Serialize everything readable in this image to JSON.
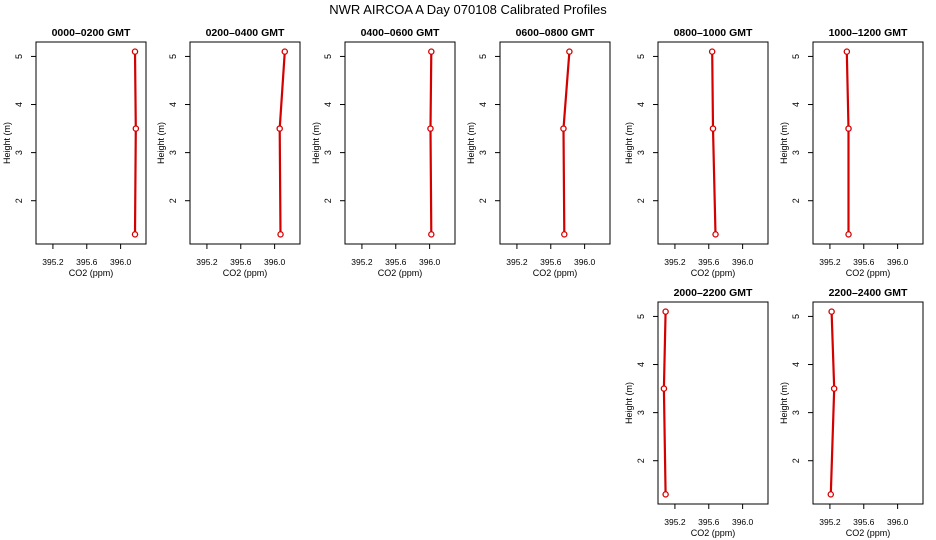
{
  "title": "NWR AIRCOA A  Day 070108  Calibrated Profiles",
  "style": {
    "line_color": "#d40000",
    "marker_color": "#d40000",
    "axis_color": "#000000"
  },
  "chart_data": [
    {
      "type": "line",
      "title": "0000–0200 GMT",
      "xlabel": "CO2 (ppm)",
      "ylabel": "Height (m)",
      "xlim": [
        395.0,
        396.3
      ],
      "ylim": [
        1.1,
        5.3
      ],
      "xticks": [
        "395.2",
        "395.6",
        "396.0"
      ],
      "yticks": [
        "2",
        "3",
        "4",
        "5"
      ],
      "points": [
        {
          "x": 396.17,
          "y": 1.3
        },
        {
          "x": 396.18,
          "y": 3.5
        },
        {
          "x": 396.17,
          "y": 5.1
        }
      ]
    },
    {
      "type": "line",
      "title": "0200–0400 GMT",
      "xlabel": "CO2 (ppm)",
      "ylabel": "Height (m)",
      "xlim": [
        395.0,
        396.3
      ],
      "ylim": [
        1.1,
        5.3
      ],
      "xticks": [
        "395.2",
        "395.6",
        "396.0"
      ],
      "yticks": [
        "2",
        "3",
        "4",
        "5"
      ],
      "points": [
        {
          "x": 396.07,
          "y": 1.3
        },
        {
          "x": 396.06,
          "y": 3.5
        },
        {
          "x": 396.12,
          "y": 5.1
        }
      ]
    },
    {
      "type": "line",
      "title": "0400–0600 GMT",
      "xlabel": "CO2 (ppm)",
      "ylabel": "Height (m)",
      "xlim": [
        395.0,
        396.3
      ],
      "ylim": [
        1.1,
        5.3
      ],
      "xticks": [
        "395.2",
        "395.6",
        "396.0"
      ],
      "yticks": [
        "2",
        "3",
        "4",
        "5"
      ],
      "points": [
        {
          "x": 396.02,
          "y": 1.3
        },
        {
          "x": 396.01,
          "y": 3.5
        },
        {
          "x": 396.02,
          "y": 5.1
        }
      ]
    },
    {
      "type": "line",
      "title": "0600–0800 GMT",
      "xlabel": "CO2 (ppm)",
      "ylabel": "Height (m)",
      "xlim": [
        395.0,
        396.3
      ],
      "ylim": [
        1.1,
        5.3
      ],
      "xticks": [
        "395.2",
        "395.6",
        "396.0"
      ],
      "yticks": [
        "2",
        "3",
        "4",
        "5"
      ],
      "points": [
        {
          "x": 395.76,
          "y": 1.3
        },
        {
          "x": 395.75,
          "y": 3.5
        },
        {
          "x": 395.82,
          "y": 5.1
        }
      ]
    },
    {
      "type": "line",
      "title": "0800–1000 GMT",
      "xlabel": "CO2 (ppm)",
      "ylabel": "Height (m)",
      "xlim": [
        395.0,
        396.3
      ],
      "ylim": [
        1.1,
        5.3
      ],
      "xticks": [
        "395.2",
        "395.6",
        "396.0"
      ],
      "yticks": [
        "2",
        "3",
        "4",
        "5"
      ],
      "points": [
        {
          "x": 395.68,
          "y": 1.3
        },
        {
          "x": 395.65,
          "y": 3.5
        },
        {
          "x": 395.64,
          "y": 5.1
        }
      ]
    },
    {
      "type": "line",
      "title": "1000–1200 GMT",
      "xlabel": "CO2 (ppm)",
      "ylabel": "Height (m)",
      "xlim": [
        395.0,
        396.3
      ],
      "ylim": [
        1.1,
        5.3
      ],
      "xticks": [
        "395.2",
        "395.6",
        "396.0"
      ],
      "yticks": [
        "2",
        "3",
        "4",
        "5"
      ],
      "points": [
        {
          "x": 395.42,
          "y": 1.3
        },
        {
          "x": 395.42,
          "y": 3.5
        },
        {
          "x": 395.4,
          "y": 5.1
        }
      ]
    },
    {
      "type": "line",
      "title": "2000–2200 GMT",
      "xlabel": "CO2 (ppm)",
      "ylabel": "Height (m)",
      "xlim": [
        395.0,
        396.3
      ],
      "ylim": [
        1.1,
        5.3
      ],
      "xticks": [
        "395.2",
        "395.6",
        "396.0"
      ],
      "yticks": [
        "2",
        "3",
        "4",
        "5"
      ],
      "points": [
        {
          "x": 395.09,
          "y": 1.3
        },
        {
          "x": 395.07,
          "y": 3.5
        },
        {
          "x": 395.09,
          "y": 5.1
        }
      ]
    },
    {
      "type": "line",
      "title": "2200–2400 GMT",
      "xlabel": "CO2 (ppm)",
      "ylabel": "Height (m)",
      "xlim": [
        395.0,
        396.3
      ],
      "ylim": [
        1.1,
        5.3
      ],
      "xticks": [
        "395.2",
        "395.6",
        "396.0"
      ],
      "yticks": [
        "2",
        "3",
        "4",
        "5"
      ],
      "points": [
        {
          "x": 395.21,
          "y": 1.3
        },
        {
          "x": 395.25,
          "y": 3.5
        },
        {
          "x": 395.22,
          "y": 5.1
        }
      ]
    }
  ]
}
